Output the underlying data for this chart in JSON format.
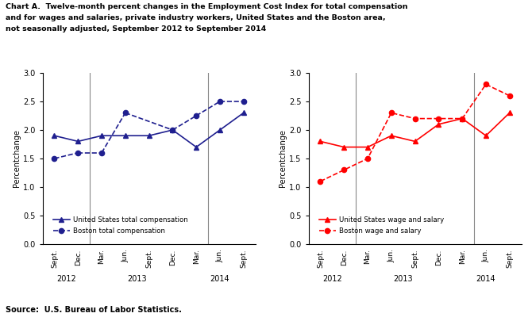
{
  "title_line1": "Chart A.  Twelve-month percent changes in the Employment Cost Index for total compensation",
  "title_line2": "and for wages and salaries, private industry workers, United States and the Boston area,",
  "title_line3": "not seasonally adjusted, September 2012 to September 2014",
  "source": "Source:  U.S. Bureau of Labor Statistics.",
  "x_labels": [
    "Sept.",
    "Dec.",
    "Mar.",
    "Jun.",
    "Sept.",
    "Dec.",
    "Mar.",
    "Jun.",
    "Sept."
  ],
  "year_labels": [
    "2012",
    "2013",
    "2014"
  ],
  "ylim": [
    0.0,
    3.0
  ],
  "yticks": [
    0.0,
    0.5,
    1.0,
    1.5,
    2.0,
    2.5,
    3.0
  ],
  "ylabel": "Percentchange",
  "us_total_comp": [
    1.9,
    1.8,
    1.9,
    1.9,
    1.9,
    2.0,
    1.7,
    2.0,
    2.3
  ],
  "boston_total_comp": [
    1.5,
    1.6,
    1.6,
    2.3,
    null,
    2.0,
    2.25,
    2.5,
    2.5
  ],
  "us_wage_salary": [
    1.8,
    1.7,
    1.7,
    1.9,
    1.8,
    2.1,
    2.2,
    1.9,
    2.3
  ],
  "boston_wage_salary": [
    1.1,
    1.3,
    1.5,
    2.3,
    2.2,
    2.2,
    2.2,
    2.8,
    2.6
  ],
  "dark_blue": "#1F1F8F",
  "red": "#FF0000",
  "left_legend_entries": [
    "United States total compensation",
    "Boston total compensation"
  ],
  "right_legend_entries": [
    "United States wage and salary",
    "Boston wage and salary"
  ],
  "vline_color": "#888888",
  "vline_positions": [
    1.5,
    6.5
  ]
}
